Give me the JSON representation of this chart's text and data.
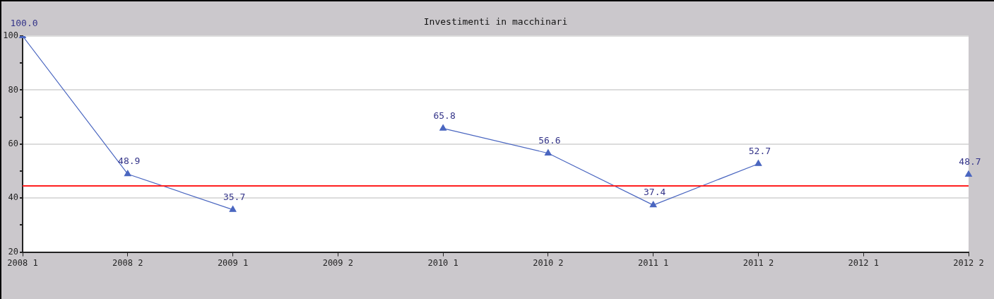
{
  "chart_data": {
    "type": "line",
    "title": "Investimenti in macchinari",
    "categories": [
      "2008 1",
      "2008 2",
      "2009 1",
      "2009 2",
      "2010 1",
      "2010 2",
      "2011 1",
      "2011 2",
      "2012 1",
      "2012 2"
    ],
    "series": [
      {
        "color": "#4a66c0",
        "values": [
          100.0,
          48.9,
          35.7,
          null,
          65.8,
          56.6,
          37.4,
          52.7,
          null,
          48.7
        ],
        "value_labels": [
          "100.0",
          "48.9",
          "35.7",
          null,
          "65.8",
          "56.6",
          "37.4",
          "52.7",
          null,
          "48.7"
        ]
      }
    ],
    "ylim": [
      20,
      100
    ],
    "yticks": [
      20,
      {
        "value": 30,
        "label": null
      },
      40,
      {
        "value": 50,
        "label": null
      },
      60,
      {
        "value": 70,
        "label": null
      },
      80,
      {
        "value": 90,
        "label": null
      },
      100
    ],
    "ref_lines": [
      {
        "axis": "y",
        "value": 44.5,
        "color": "#ff2020"
      }
    ],
    "grid": "y",
    "legend": false,
    "marker": "triangle",
    "line_style": "solid"
  }
}
